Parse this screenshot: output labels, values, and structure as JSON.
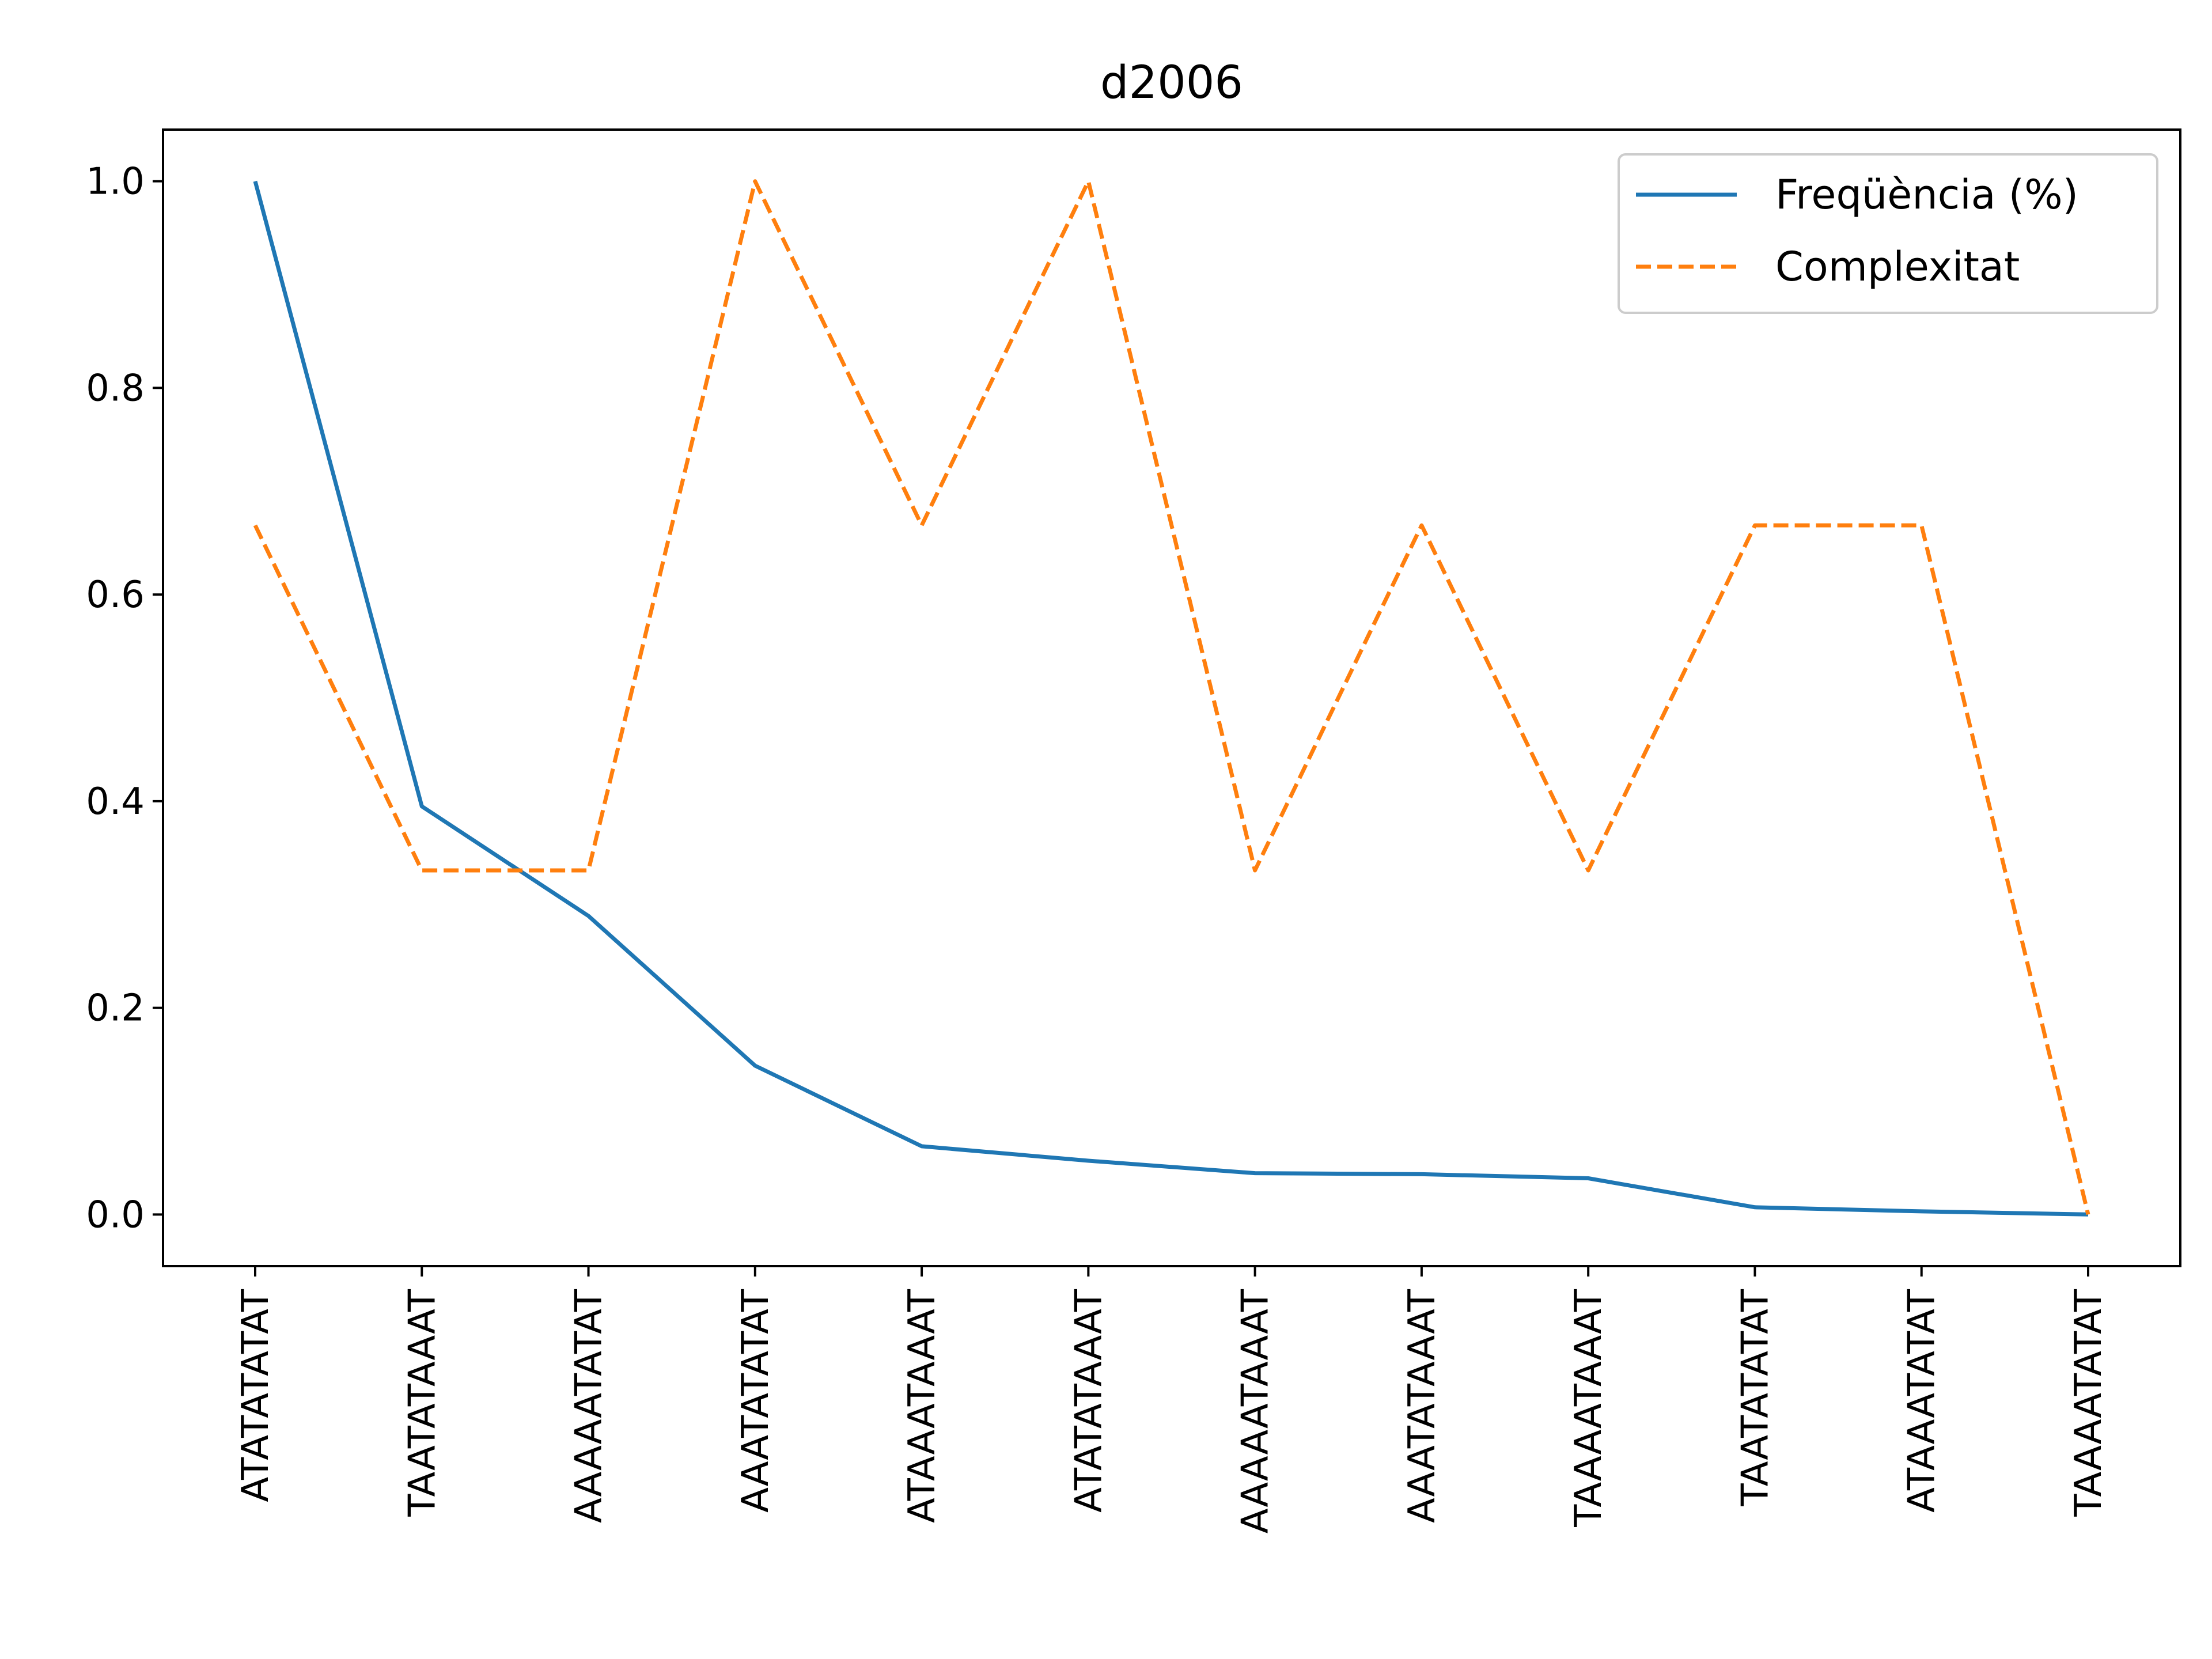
{
  "chart_data": {
    "type": "line",
    "title": "d2006",
    "xlabel": "",
    "ylabel": "",
    "categories": [
      "ATATATATAT",
      "TAATATAAAT",
      "AAAAATATAT",
      "AAATATATAT",
      "ATAAATAAAT",
      "ATATATAAAT",
      "AAAAATAAAT",
      "AAATATAAAT",
      "TAAAATAAAT",
      "TAATATATAT",
      "ATAAATATAT",
      "TAAAATATAT"
    ],
    "ylim": [
      -0.05,
      1.05
    ],
    "yticks": [
      0.0,
      0.2,
      0.4,
      0.6,
      0.8,
      1.0
    ],
    "ytick_labels": [
      "0.0",
      "0.2",
      "0.4",
      "0.6",
      "0.8",
      "1.0"
    ],
    "grid": false,
    "legend_position": "top-right",
    "series": [
      {
        "name": "Freqüència (%)",
        "color": "#1f77b4",
        "style": "solid",
        "values": [
          1.0,
          0.395,
          0.289,
          0.144,
          0.066,
          0.052,
          0.04,
          0.039,
          0.035,
          0.007,
          0.003,
          0.0
        ]
      },
      {
        "name": "Complexitat",
        "color": "#ff7f0e",
        "style": "dashed",
        "values": [
          0.667,
          0.333,
          0.333,
          1.0,
          0.667,
          1.0,
          0.333,
          0.667,
          0.333,
          0.667,
          0.667,
          0.0
        ]
      }
    ]
  }
}
